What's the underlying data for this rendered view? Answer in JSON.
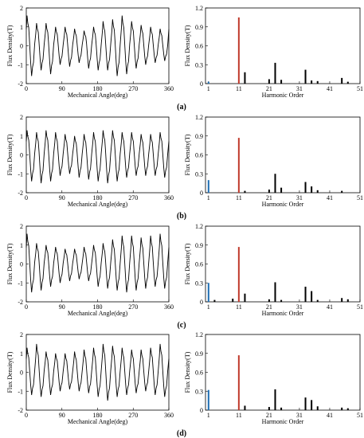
{
  "panels": [
    {
      "label": "(a)",
      "waveform": {
        "xlabel": "Mechanical Angle(deg)",
        "ylabel": "Flux Density(T)",
        "xlim": [
          0,
          360
        ],
        "ylim": [
          -2,
          2
        ],
        "xticks": [
          "0",
          "90",
          "180",
          "270",
          "360"
        ],
        "yticks": [
          "2",
          "1",
          "0",
          "-1",
          "-2"
        ],
        "peaks": [
          [
            1.6,
            -1.6
          ],
          [
            1.2,
            -1.3
          ],
          [
            1.2,
            -1.5
          ],
          [
            1.0,
            -1.0
          ],
          [
            1.0,
            -1.1
          ],
          [
            0.9,
            -0.9
          ],
          [
            0.8,
            -1.2
          ],
          [
            1.0,
            -1.3
          ],
          [
            1.3,
            -1.3
          ],
          [
            1.4,
            -1.6
          ],
          [
            1.6,
            -1.5
          ],
          [
            1.3,
            -1.2
          ],
          [
            1.1,
            -1.0
          ],
          [
            1.0,
            -0.9
          ],
          [
            0.9,
            -0.8
          ]
        ]
      },
      "spectrum": {
        "xlabel": "Harmonic Order",
        "ylabel": "Flux Density(T)",
        "xlim": [
          0,
          51
        ],
        "ylim": [
          0,
          1.2
        ],
        "xticks": [
          "1",
          "11",
          "21",
          "31",
          "41",
          "51"
        ],
        "yticks": [
          "1.2",
          "0.9",
          "0.6",
          "0.3",
          "0"
        ],
        "bars": [
          {
            "order": 1,
            "value": 0.03,
            "color": "#1f6fb4"
          },
          {
            "order": 11,
            "value": 1.05,
            "color": "#c0392b"
          },
          {
            "order": 13,
            "value": 0.18,
            "color": "#000000"
          },
          {
            "order": 21,
            "value": 0.07,
            "color": "#000000"
          },
          {
            "order": 23,
            "value": 0.33,
            "color": "#000000"
          },
          {
            "order": 25,
            "value": 0.06,
            "color": "#000000"
          },
          {
            "order": 33,
            "value": 0.22,
            "color": "#000000"
          },
          {
            "order": 35,
            "value": 0.05,
            "color": "#000000"
          },
          {
            "order": 37,
            "value": 0.04,
            "color": "#000000"
          },
          {
            "order": 45,
            "value": 0.09,
            "color": "#000000"
          },
          {
            "order": 47,
            "value": 0.03,
            "color": "#000000"
          }
        ]
      }
    },
    {
      "label": "(b)",
      "waveform": {
        "xlabel": "Mechanical Angle(deg)",
        "ylabel": "Flux Density(T)",
        "xlim": [
          0,
          360
        ],
        "ylim": [
          -2,
          2
        ],
        "xticks": [
          "0",
          "90",
          "180",
          "270",
          "360"
        ],
        "yticks": [
          "2",
          "1",
          "0",
          "-1",
          "-2"
        ],
        "peaks": [
          [
            1.3,
            -1.4
          ],
          [
            1.2,
            -1.5
          ],
          [
            1.3,
            -1.4
          ],
          [
            1.2,
            -1.1
          ],
          [
            1.1,
            -1.0
          ],
          [
            1.0,
            -1.2
          ],
          [
            1.1,
            -1.3
          ],
          [
            1.2,
            -1.4
          ],
          [
            1.3,
            -1.5
          ],
          [
            1.3,
            -1.4
          ],
          [
            1.2,
            -1.2
          ],
          [
            1.2,
            -1.1
          ],
          [
            1.1,
            -1.1
          ],
          [
            1.1,
            -1.1
          ],
          [
            1.2,
            -1.2
          ]
        ]
      },
      "spectrum": {
        "xlabel": "Harmonic Order",
        "ylabel": "Flux Density(T)",
        "xlim": [
          0,
          51
        ],
        "ylim": [
          0,
          1.2
        ],
        "xticks": [
          "1",
          "11",
          "21",
          "31",
          "41",
          "51"
        ],
        "yticks": [
          "1.2",
          "0.9",
          "0.6",
          "0.3",
          "0"
        ],
        "bars": [
          {
            "order": 1,
            "value": 0.2,
            "color": "#1f6fb4"
          },
          {
            "order": 11,
            "value": 0.87,
            "color": "#c0392b"
          },
          {
            "order": 13,
            "value": 0.03,
            "color": "#000000"
          },
          {
            "order": 21,
            "value": 0.05,
            "color": "#000000"
          },
          {
            "order": 23,
            "value": 0.3,
            "color": "#000000"
          },
          {
            "order": 25,
            "value": 0.08,
            "color": "#000000"
          },
          {
            "order": 33,
            "value": 0.17,
            "color": "#000000"
          },
          {
            "order": 35,
            "value": 0.1,
            "color": "#000000"
          },
          {
            "order": 37,
            "value": 0.04,
            "color": "#000000"
          },
          {
            "order": 45,
            "value": 0.03,
            "color": "#000000"
          }
        ]
      }
    },
    {
      "label": "(c)",
      "waveform": {
        "xlabel": "Mechanical Angle(deg)",
        "ylabel": "Flux Density(T)",
        "xlim": [
          0,
          360
        ],
        "ylim": [
          -2,
          2
        ],
        "xticks": [
          "0",
          "90",
          "180",
          "270",
          "360"
        ],
        "yticks": [
          "2",
          "1",
          "0",
          "-1",
          "-2"
        ],
        "peaks": [
          [
            1.6,
            -1.5
          ],
          [
            1.1,
            -1.4
          ],
          [
            1.0,
            -1.2
          ],
          [
            0.9,
            -1.0
          ],
          [
            0.8,
            -0.9
          ],
          [
            0.8,
            -0.8
          ],
          [
            0.9,
            -0.9
          ],
          [
            1.0,
            -1.2
          ],
          [
            1.1,
            -1.3
          ],
          [
            1.3,
            -1.4
          ],
          [
            1.5,
            -1.5
          ],
          [
            1.5,
            -1.4
          ],
          [
            1.4,
            -1.3
          ],
          [
            1.5,
            -1.2
          ],
          [
            1.6,
            -1.3
          ]
        ]
      },
      "spectrum": {
        "xlabel": "Harmonic Order",
        "ylabel": "Flux Density(T)",
        "xlim": [
          0,
          51
        ],
        "ylim": [
          0,
          1.2
        ],
        "xticks": [
          "1",
          "11",
          "21",
          "31",
          "41",
          "51"
        ],
        "yticks": [
          "1.2",
          "0.9",
          "0.6",
          "0.3",
          "0"
        ],
        "bars": [
          {
            "order": 1,
            "value": 0.3,
            "color": "#1f6fb4"
          },
          {
            "order": 3,
            "value": 0.03,
            "color": "#000000"
          },
          {
            "order": 9,
            "value": 0.05,
            "color": "#000000"
          },
          {
            "order": 11,
            "value": 0.87,
            "color": "#c0392b"
          },
          {
            "order": 13,
            "value": 0.13,
            "color": "#000000"
          },
          {
            "order": 21,
            "value": 0.04,
            "color": "#000000"
          },
          {
            "order": 23,
            "value": 0.31,
            "color": "#000000"
          },
          {
            "order": 25,
            "value": 0.03,
            "color": "#000000"
          },
          {
            "order": 33,
            "value": 0.24,
            "color": "#000000"
          },
          {
            "order": 35,
            "value": 0.17,
            "color": "#000000"
          },
          {
            "order": 37,
            "value": 0.03,
            "color": "#000000"
          },
          {
            "order": 45,
            "value": 0.06,
            "color": "#000000"
          },
          {
            "order": 47,
            "value": 0.04,
            "color": "#000000"
          }
        ]
      }
    },
    {
      "label": "(d)",
      "waveform": {
        "xlabel": "Mechanical Angle(deg)",
        "ylabel": "Flux Density(T)",
        "xlim": [
          0,
          360
        ],
        "ylim": [
          -2,
          2
        ],
        "xticks": [
          "0",
          "90",
          "180",
          "270",
          "360"
        ],
        "yticks": [
          "2",
          "1",
          "0",
          "-1",
          "-2"
        ],
        "peaks": [
          [
            1.3,
            -1.2
          ],
          [
            1.5,
            -1.3
          ],
          [
            1.1,
            -1.2
          ],
          [
            1.0,
            -1.0
          ],
          [
            1.0,
            -0.9
          ],
          [
            1.1,
            -1.0
          ],
          [
            1.2,
            -1.1
          ],
          [
            1.3,
            -1.3
          ],
          [
            1.5,
            -1.5
          ],
          [
            1.4,
            -1.3
          ],
          [
            1.3,
            -1.2
          ],
          [
            1.2,
            -1.1
          ],
          [
            1.2,
            -1.0
          ],
          [
            1.3,
            -1.2
          ],
          [
            1.5,
            -1.3
          ]
        ]
      },
      "spectrum": {
        "xlabel": "Harmonic Order",
        "ylabel": "Flux Density(T)",
        "xlim": [
          0,
          51
        ],
        "ylim": [
          0,
          1.2
        ],
        "xticks": [
          "1",
          "11",
          "21",
          "31",
          "41",
          "51"
        ],
        "yticks": [
          "1.2",
          "0.9",
          "0.6",
          "0.3",
          "0"
        ],
        "bars": [
          {
            "order": 1,
            "value": 0.32,
            "color": "#1f6fb4"
          },
          {
            "order": 11,
            "value": 0.87,
            "color": "#c0392b"
          },
          {
            "order": 13,
            "value": 0.07,
            "color": "#000000"
          },
          {
            "order": 21,
            "value": 0.05,
            "color": "#000000"
          },
          {
            "order": 23,
            "value": 0.33,
            "color": "#000000"
          },
          {
            "order": 25,
            "value": 0.04,
            "color": "#000000"
          },
          {
            "order": 33,
            "value": 0.2,
            "color": "#000000"
          },
          {
            "order": 35,
            "value": 0.16,
            "color": "#000000"
          },
          {
            "order": 37,
            "value": 0.06,
            "color": "#000000"
          },
          {
            "order": 45,
            "value": 0.04,
            "color": "#000000"
          },
          {
            "order": 47,
            "value": 0.03,
            "color": "#000000"
          }
        ]
      }
    }
  ]
}
